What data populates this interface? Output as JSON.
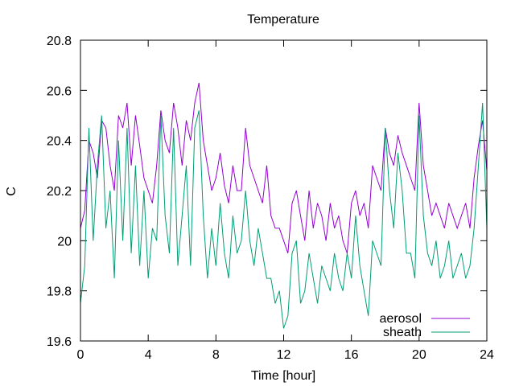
{
  "chart_data": {
    "type": "line",
    "title": "Temperature",
    "xlabel": "Time [hour]",
    "ylabel": "C",
    "xlim": [
      0,
      24
    ],
    "ylim": [
      19.6,
      20.8
    ],
    "x_ticks": [
      "0",
      "4",
      "8",
      "12",
      "16",
      "20",
      "24"
    ],
    "y_ticks": [
      "19.6",
      "19.8",
      "20",
      "20.2",
      "20.4",
      "20.6",
      "20.8"
    ],
    "grid": false,
    "legend_position": "bottom-right",
    "series": [
      {
        "name": "aerosol",
        "color": "#9400d3",
        "x": [
          0,
          0.25,
          0.5,
          0.75,
          1,
          1.25,
          1.5,
          1.75,
          2,
          2.25,
          2.5,
          2.75,
          3,
          3.25,
          3.5,
          3.75,
          4,
          4.25,
          4.5,
          4.75,
          5,
          5.25,
          5.5,
          5.75,
          6,
          6.25,
          6.5,
          6.75,
          7,
          7.25,
          7.5,
          7.75,
          8,
          8.25,
          8.5,
          8.75,
          9,
          9.25,
          9.5,
          9.75,
          10,
          10.25,
          10.5,
          10.75,
          11,
          11.25,
          11.5,
          11.75,
          12,
          12.25,
          12.5,
          12.75,
          13,
          13.25,
          13.5,
          13.75,
          14,
          14.25,
          14.5,
          14.75,
          15,
          15.25,
          15.5,
          15.75,
          16,
          16.25,
          16.5,
          16.75,
          17,
          17.25,
          17.5,
          17.75,
          18,
          18.25,
          18.5,
          18.75,
          19,
          19.25,
          19.5,
          19.75,
          20,
          20.25,
          20.5,
          20.75,
          21,
          21.25,
          21.5,
          21.75,
          22,
          22.25,
          22.5,
          22.75,
          23,
          23.25,
          23.5,
          23.75,
          24
        ],
        "values": [
          20.05,
          20.12,
          20.4,
          20.35,
          20.25,
          20.48,
          20.45,
          20.3,
          20.2,
          20.5,
          20.45,
          20.55,
          20.3,
          20.5,
          20.38,
          20.25,
          20.2,
          20.15,
          20.3,
          20.52,
          20.4,
          20.35,
          20.55,
          20.45,
          20.3,
          20.48,
          20.4,
          20.55,
          20.63,
          20.4,
          20.3,
          20.2,
          20.25,
          20.35,
          20.22,
          20.15,
          20.3,
          20.2,
          20.2,
          20.45,
          20.3,
          20.25,
          20.2,
          20.15,
          20.3,
          20.1,
          20.05,
          20.05,
          20.0,
          19.95,
          20.15,
          20.2,
          20.1,
          20.0,
          20.2,
          20.05,
          20.15,
          20.1,
          20.0,
          20.15,
          20.05,
          20.1,
          20.0,
          19.95,
          20.15,
          20.2,
          20.1,
          20.15,
          20.05,
          20.3,
          20.25,
          20.2,
          20.45,
          20.35,
          20.3,
          20.42,
          20.35,
          20.3,
          20.25,
          20.2,
          20.55,
          20.3,
          20.2,
          20.1,
          20.15,
          20.1,
          20.05,
          20.15,
          20.1,
          20.05,
          20.1,
          20.15,
          20.05,
          20.25,
          20.38,
          20.48,
          20.28
        ]
      },
      {
        "name": "sheath",
        "color": "#009e73",
        "x": [
          0,
          0.25,
          0.5,
          0.75,
          1,
          1.25,
          1.5,
          1.75,
          2,
          2.25,
          2.5,
          2.75,
          3,
          3.25,
          3.5,
          3.75,
          4,
          4.25,
          4.5,
          4.75,
          5,
          5.25,
          5.5,
          5.75,
          6,
          6.25,
          6.5,
          6.75,
          7,
          7.25,
          7.5,
          7.75,
          8,
          8.25,
          8.5,
          8.75,
          9,
          9.25,
          9.5,
          9.75,
          10,
          10.25,
          10.5,
          10.75,
          11,
          11.25,
          11.5,
          11.75,
          12,
          12.25,
          12.5,
          12.75,
          13,
          13.25,
          13.5,
          13.75,
          14,
          14.25,
          14.5,
          14.75,
          15,
          15.25,
          15.5,
          15.75,
          16,
          16.25,
          16.5,
          16.75,
          17,
          17.25,
          17.5,
          17.75,
          18,
          18.25,
          18.5,
          18.75,
          19,
          19.25,
          19.5,
          19.75,
          20,
          20.25,
          20.5,
          20.75,
          21,
          21.25,
          21.5,
          21.75,
          22,
          22.25,
          22.5,
          22.75,
          23,
          23.25,
          23.5,
          23.75,
          24
        ],
        "values": [
          19.75,
          19.9,
          20.45,
          20.0,
          20.3,
          20.5,
          20.05,
          20.2,
          19.85,
          20.4,
          20.0,
          20.45,
          19.95,
          20.3,
          19.9,
          20.2,
          19.85,
          20.05,
          20.0,
          20.5,
          20.1,
          19.95,
          20.45,
          19.9,
          20.1,
          20.3,
          19.9,
          20.45,
          20.52,
          20.1,
          19.85,
          20.05,
          19.9,
          20.15,
          19.95,
          19.85,
          20.1,
          19.95,
          20.0,
          20.2,
          20.0,
          19.9,
          20.05,
          19.95,
          19.85,
          19.85,
          19.75,
          19.8,
          19.65,
          19.7,
          19.95,
          20.0,
          19.75,
          19.8,
          19.95,
          19.85,
          19.75,
          19.9,
          19.85,
          19.8,
          19.95,
          19.85,
          19.8,
          19.95,
          19.85,
          20.1,
          19.9,
          19.8,
          19.7,
          20.0,
          19.95,
          19.9,
          20.45,
          20.2,
          20.05,
          20.35,
          20.2,
          19.95,
          19.95,
          19.85,
          20.5,
          20.1,
          19.95,
          19.9,
          20.0,
          19.85,
          19.9,
          20.0,
          19.85,
          19.9,
          19.95,
          19.85,
          19.9,
          20.05,
          20.3,
          20.55,
          20.05
        ]
      }
    ]
  }
}
